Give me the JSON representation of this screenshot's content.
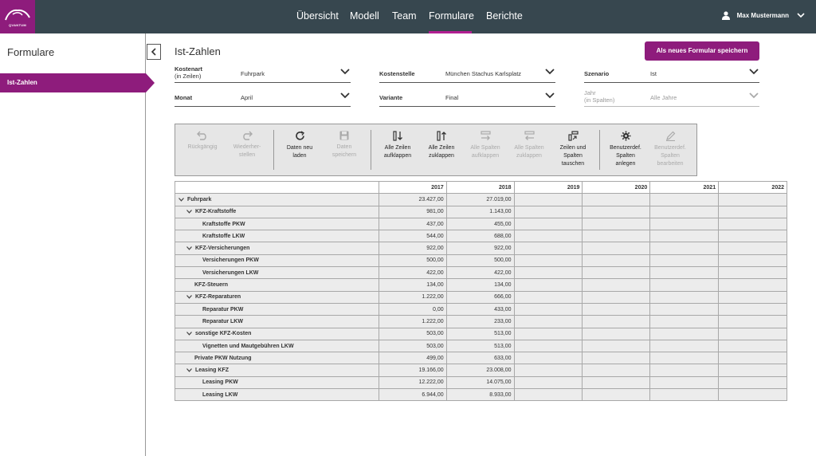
{
  "brand": {
    "logo_text": "QVANTUM",
    "accent": "#8e1c7c",
    "topbar": "#37474f"
  },
  "nav": [
    {
      "label": "Übersicht",
      "active": false
    },
    {
      "label": "Modell",
      "active": false
    },
    {
      "label": "Team",
      "active": false
    },
    {
      "label": "Formulare",
      "active": true
    },
    {
      "label": "Berichte",
      "active": false
    }
  ],
  "user": {
    "name": "Max Mustermann",
    "icon": "user-icon"
  },
  "sidebar": {
    "title": "Formulare",
    "items": [
      {
        "label": "Ist-Zahlen",
        "active": true
      }
    ]
  },
  "page": {
    "title": "Ist-Zahlen",
    "save_as_new_label": "Als neues Formular speichern"
  },
  "filters": {
    "kostenart": {
      "label_line1": "Kostenart",
      "label_line2": "(in Zeilen)",
      "value": "Fuhrpark"
    },
    "kostenstelle": {
      "label": "Kostenstelle",
      "value": "München Stachus Karlsplatz"
    },
    "szenario": {
      "label": "Szenario",
      "value": "Ist"
    },
    "monat": {
      "label": "Monat",
      "value": "April"
    },
    "variante": {
      "label": "Variante",
      "value": "Final"
    },
    "jahr": {
      "label_line1": "Jahr",
      "label_line2": "(in Spalten)",
      "value": "Alle Jahre"
    }
  },
  "toolbar": {
    "undo": {
      "l1": "Rückgängig",
      "l2": ""
    },
    "redo": {
      "l1": "Wiederher-",
      "l2": "stellen"
    },
    "reload": {
      "l1": "Daten neu",
      "l2": "laden"
    },
    "save": {
      "l1": "Daten",
      "l2": "speichern"
    },
    "expand_rows": {
      "l1": "Alle Zeilen",
      "l2": "aufklappen"
    },
    "collapse_rows": {
      "l1": "Alle Zeilen",
      "l2": "zuklappen"
    },
    "expand_cols": {
      "l1": "Alle Spalten",
      "l2": "aufklappen"
    },
    "collapse_cols": {
      "l1": "Alle Spalten",
      "l2": "zuklappen"
    },
    "swap": {
      "l1": "Zeilen und",
      "l2": "Spalten",
      "l3": "tauschen"
    },
    "custom_create": {
      "l1": "Benutzerdef.",
      "l2": "Spalten",
      "l3": "anlegen"
    },
    "custom_edit": {
      "l1": "Benutzerdef.",
      "l2": "Spalten",
      "l3": "bearbeiten"
    }
  },
  "table": {
    "years": [
      "2017",
      "2018",
      "2019",
      "2020",
      "2021",
      "2022"
    ],
    "rows": [
      {
        "label": "Fuhrpark",
        "v2017": "23.427,00",
        "v2018": "27.019,00"
      },
      {
        "label": "KFZ-Kraftstoffe",
        "v2017": "981,00",
        "v2018": "1.143,00"
      },
      {
        "label": "Kraftstoffe PKW",
        "v2017": "437,00",
        "v2018": "455,00"
      },
      {
        "label": "Kraftstoffe LKW",
        "v2017": "544,00",
        "v2018": "688,00"
      },
      {
        "label": "KFZ-Versicherungen",
        "v2017": "922,00",
        "v2018": "922,00"
      },
      {
        "label": "Versicherungen PKW",
        "v2017": "500,00",
        "v2018": "500,00"
      },
      {
        "label": "Versicherungen LKW",
        "v2017": "422,00",
        "v2018": "422,00"
      },
      {
        "label": "KFZ-Steuern",
        "v2017": "134,00",
        "v2018": "134,00"
      },
      {
        "label": "KFZ-Reparaturen",
        "v2017": "1.222,00",
        "v2018": "666,00"
      },
      {
        "label": "Reparatur PKW",
        "v2017": "0,00",
        "v2018": "433,00"
      },
      {
        "label": "Reparatur LKW",
        "v2017": "1.222,00",
        "v2018": "233,00"
      },
      {
        "label": "sonstige KFZ-Kosten",
        "v2017": "503,00",
        "v2018": "513,00"
      },
      {
        "label": "Vignetten und Mautgebühren LKW",
        "v2017": "503,00",
        "v2018": "513,00"
      },
      {
        "label": "Private PKW Nutzung",
        "v2017": "499,00",
        "v2018": "633,00"
      },
      {
        "label": "Leasing KFZ",
        "v2017": "19.166,00",
        "v2018": "23.008,00"
      },
      {
        "label": "Leasing PKW",
        "v2017": "12.222,00",
        "v2018": "14.075,00"
      },
      {
        "label": "Leasing LKW",
        "v2017": "6.944,00",
        "v2018": "8.933,00"
      }
    ]
  }
}
